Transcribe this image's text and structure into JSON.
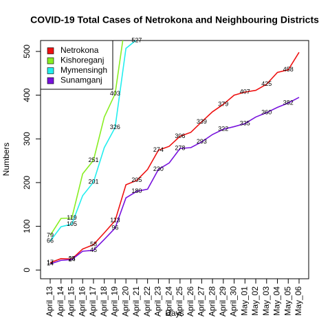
{
  "chart_data": {
    "type": "line",
    "title": "COVID-19 Total Cases of Netrokona and Neighbouring Districts",
    "x_label": "Days",
    "y_label": "Numbers",
    "categories": [
      "April_13",
      "April_14",
      "April_15",
      "April_16",
      "April_17",
      "April_18",
      "April_19",
      "April_20",
      "April_21",
      "April_22",
      "April_23",
      "April_24",
      "April_25",
      "April_26",
      "April_27",
      "April_28",
      "April_29",
      "April_30",
      "May_01",
      "May_02",
      "May_03",
      "May_04",
      "May_05",
      "May_06"
    ],
    "ylim": [
      -20,
      525
    ],
    "yticks": [
      0,
      100,
      200,
      300,
      400,
      500
    ],
    "legend": "top-left",
    "series": [
      {
        "name": "Netrokona",
        "color": "#ee1111",
        "values": [
          17,
          26,
          25,
          48,
          58,
          85,
          113,
          195,
          205,
          230,
          274,
          283,
          306,
          315,
          339,
          362,
          379,
          400,
          407,
          411,
          425,
          452,
          458,
          498
        ],
        "value_labels": [
          "17",
          null,
          "25",
          null,
          "58",
          null,
          "113",
          null,
          "205",
          null,
          "274",
          null,
          "306",
          null,
          "339",
          null,
          "379",
          null,
          "407",
          null,
          "425",
          null,
          "458",
          null
        ]
      },
      {
        "name": "Kishoreganj",
        "color": "#88ee22",
        "values": [
          79,
          118,
          119,
          220,
          251,
          350,
          403,
          575,
          null,
          null,
          null,
          null,
          null,
          null,
          null,
          null,
          null,
          null,
          null,
          null,
          null,
          null,
          null,
          null
        ],
        "value_labels": [
          "79",
          null,
          "119",
          null,
          "251",
          null,
          "403",
          null,
          null,
          null,
          null,
          null,
          null,
          null,
          null,
          null,
          null,
          null,
          null,
          null,
          null,
          null,
          null,
          null
        ]
      },
      {
        "name": "Mymensingh",
        "color": "#22eeee",
        "values": [
          66,
          99,
          105,
          170,
          201,
          280,
          326,
          507,
          527,
          null,
          null,
          null,
          null,
          null,
          null,
          null,
          null,
          null,
          null,
          null,
          null,
          null,
          null,
          null
        ],
        "value_labels": [
          "66",
          null,
          "105",
          null,
          "201",
          null,
          "326",
          null,
          "527",
          null,
          null,
          null,
          null,
          null,
          null,
          null,
          null,
          null,
          null,
          null,
          null,
          null,
          null,
          null
        ]
      },
      {
        "name": "Sunamganj",
        "color": "#7711dd",
        "values": [
          14,
          22,
          24,
          43,
          45,
          70,
          96,
          165,
          180,
          185,
          230,
          245,
          278,
          280,
          293,
          310,
          322,
          328,
          335,
          350,
          360,
          372,
          382,
          395
        ],
        "value_labels": [
          "14",
          null,
          "24",
          null,
          "45",
          null,
          "96",
          null,
          "180",
          null,
          "230",
          null,
          "278",
          null,
          "293",
          null,
          "322",
          null,
          "335",
          null,
          "360",
          null,
          "382",
          null
        ]
      }
    ]
  }
}
